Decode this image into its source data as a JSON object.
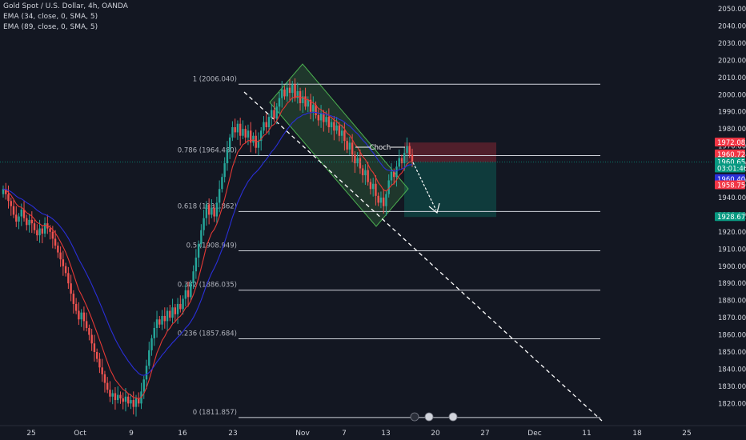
{
  "legend": {
    "title": "Gold Spot / U.S. Dollar, 4h, OANDA",
    "ema1": "EMA (34, close, 0, SMA, 5)",
    "ema2": "EMA (89, close, 0, SMA, 5)"
  },
  "colors": {
    "background": "#131722",
    "up": "#26a69a",
    "down": "#ef5350",
    "ema34": "#e53935",
    "ema89": "#2a2fd8",
    "fib": "#d1d4dc",
    "channel": "#4caf50"
  },
  "chart_data": {
    "type": "candlestick",
    "y_ticks": [
      "2050.000",
      "2040.000",
      "2030.000",
      "2020.000",
      "2010.000",
      "2000.000",
      "1990.000",
      "1980.000",
      "1970.000",
      "1960.000",
      "1950.000",
      "1940.000",
      "1930.000",
      "1920.000",
      "1910.000",
      "1900.000",
      "1890.000",
      "1880.000",
      "1870.000",
      "1860.000",
      "1850.000",
      "1840.000",
      "1830.000",
      "1820.000"
    ],
    "y_range": [
      1815,
      2052
    ],
    "x_ticks": [
      "25",
      "Oct",
      "9",
      "16",
      "23",
      "Nov",
      "7",
      "13",
      "20",
      "27",
      "Dec",
      "11",
      "18",
      "25"
    ],
    "fib_levels": [
      {
        "label": "1 (2006.040)",
        "price": 2006.04
      },
      {
        "label": "0.786 (1964.480)",
        "price": 1964.48
      },
      {
        "label": "0.618 (1931.862)",
        "price": 1931.862
      },
      {
        "label": "0.5 (1908.949)",
        "price": 1908.949
      },
      {
        "label": "0.382 (1886.035)",
        "price": 1886.035
      },
      {
        "label": "0.236 (1857.684)",
        "price": 1857.684
      },
      {
        "label": "0 (1811.857)",
        "price": 1811.857
      }
    ],
    "annotation": "Choch",
    "price_badges": [
      {
        "text": "1972.081",
        "price": 1972.081,
        "color": "#f23645"
      },
      {
        "text": "1960.724",
        "price": 1965.2,
        "color": "#f23645"
      },
      {
        "text": "1960.655",
        "price": 1960.655,
        "color": "#089981"
      },
      {
        "text": "03:01:46",
        "price": 1957.0,
        "color": "#089981"
      },
      {
        "text": "1960.405",
        "price": 1950.8,
        "color": "#2a2fd8"
      },
      {
        "text": "1958.756",
        "price": 1947.2,
        "color": "#f23645"
      },
      {
        "text": "1928.675",
        "price": 1928.675,
        "color": "#089981"
      }
    ],
    "trade": {
      "entry": 1960.655,
      "stop": 1972.081,
      "target": 1928.675
    },
    "closes": [
      1945,
      1942,
      1938,
      1935,
      1930,
      1926,
      1929,
      1933,
      1928,
      1924,
      1927,
      1925,
      1921,
      1918,
      1922,
      1919,
      1925,
      1922,
      1920,
      1916,
      1912,
      1908,
      1904,
      1900,
      1896,
      1890,
      1884,
      1878,
      1874,
      1869,
      1873,
      1868,
      1864,
      1860,
      1855,
      1850,
      1846,
      1841,
      1837,
      1832,
      1828,
      1824,
      1826,
      1822,
      1825,
      1823,
      1821,
      1824,
      1820,
      1822,
      1818,
      1823,
      1820,
      1827,
      1834,
      1842,
      1851,
      1858,
      1864,
      1869,
      1866,
      1871,
      1868,
      1874,
      1870,
      1876,
      1872,
      1878,
      1875,
      1881,
      1886,
      1882,
      1890,
      1897,
      1905,
      1913,
      1921,
      1928,
      1936,
      1930,
      1934,
      1929,
      1937,
      1945,
      1952,
      1960,
      1968,
      1975,
      1981,
      1978,
      1983,
      1976,
      1980,
      1975,
      1979,
      1972,
      1976,
      1969,
      1973,
      1979,
      1984,
      1981,
      1987,
      1991,
      1986,
      1993,
      1998,
      2003,
      1999,
      2004,
      2001,
      2006,
      1998,
      2002,
      1995,
      1999,
      1993,
      1997,
      1990,
      1994,
      1988,
      1985,
      1989,
      1984,
      1987,
      1981,
      1984,
      1979,
      1982,
      1976,
      1979,
      1973,
      1968,
      1972,
      1965,
      1960,
      1963,
      1957,
      1953,
      1956,
      1949,
      1945,
      1948,
      1941,
      1937,
      1940,
      1935,
      1942,
      1950,
      1955,
      1952,
      1958,
      1963,
      1960,
      1966,
      1970,
      1965,
      1961
    ]
  }
}
